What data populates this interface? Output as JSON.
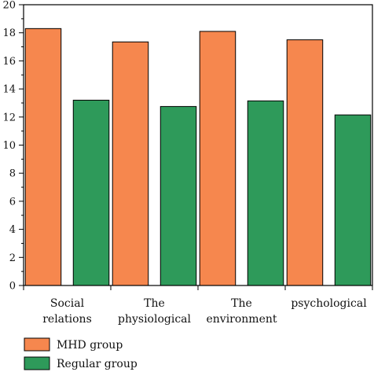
{
  "chart_data": {
    "type": "bar",
    "categories": [
      [
        "Social",
        "relations"
      ],
      [
        "The",
        "physiological"
      ],
      [
        "The",
        "environment"
      ],
      [
        "psychological"
      ]
    ],
    "series": [
      {
        "name": "MHD group",
        "color": "#F6874E",
        "values": [
          18.3,
          17.35,
          18.1,
          17.5
        ]
      },
      {
        "name": "Regular group",
        "color": "#2E9A5A",
        "values": [
          13.2,
          12.75,
          13.15,
          12.15
        ]
      }
    ],
    "ylim": [
      0,
      20
    ],
    "yticks": [
      0,
      2,
      4,
      6,
      8,
      10,
      12,
      14,
      16,
      18,
      20
    ],
    "xlabel": "",
    "ylabel": "",
    "title": "",
    "legend_position": "bottom-left",
    "grid": false
  }
}
